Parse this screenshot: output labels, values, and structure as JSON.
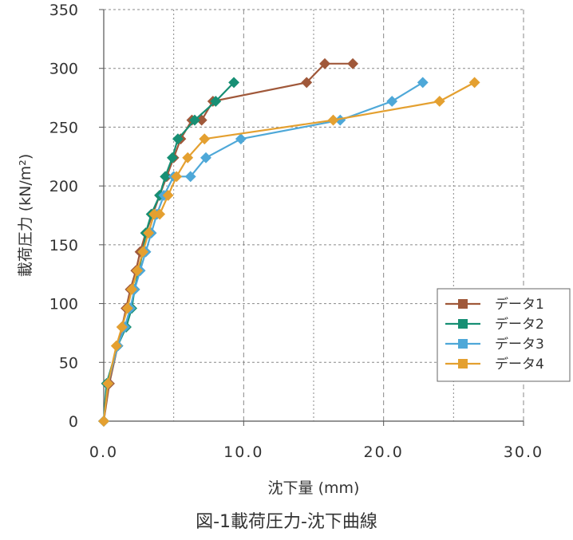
{
  "chart_data": {
    "type": "line",
    "ylabel": "載荷圧力 (kN/m²)",
    "xlabel": "沈下量 (mm)",
    "caption": "図-1載荷圧力-沈下曲線",
    "xlim": [
      0,
      30
    ],
    "ylim": [
      0,
      350
    ],
    "x_ticks": [
      0,
      10,
      20,
      30
    ],
    "x_tick_labels": [
      "0.0",
      "10.0",
      "20.0",
      "30.0"
    ],
    "y_ticks": [
      0,
      50,
      100,
      150,
      200,
      250,
      300,
      350
    ],
    "y_tick_labels": [
      "0",
      "50",
      "100",
      "150",
      "200",
      "250",
      "300",
      "350"
    ],
    "grid": true,
    "legend_position": "bottom-right",
    "series": [
      {
        "name": "データ1",
        "color": "#A0583A",
        "marker": "diamond",
        "x": [
          0.0,
          0.4,
          1.0,
          1.3,
          1.6,
          1.9,
          2.3,
          2.6,
          3.0,
          3.5,
          4.0,
          4.5,
          5.0,
          5.5,
          6.3,
          7.0,
          7.8,
          14.5,
          15.8,
          17.8
        ],
        "y": [
          0,
          32,
          64,
          80,
          96,
          112,
          128,
          144,
          160,
          176,
          192,
          208,
          224,
          240,
          256,
          256,
          272,
          288,
          304,
          304
        ]
      },
      {
        "name": "データ2",
        "color": "#178F74",
        "marker": "diamond",
        "x": [
          0.0,
          0.2,
          1.0,
          1.6,
          2.0,
          2.2,
          2.5,
          2.8,
          3.0,
          3.4,
          4.0,
          4.4,
          4.9,
          5.3,
          6.5,
          8.0,
          9.3
        ],
        "y": [
          0,
          32,
          64,
          80,
          96,
          112,
          128,
          144,
          160,
          176,
          192,
          208,
          224,
          240,
          256,
          272,
          288
        ]
      },
      {
        "name": "データ3",
        "color": "#4EA8D8",
        "marker": "diamond",
        "x": [
          0.0,
          0.3,
          1.0,
          1.5,
          1.9,
          2.2,
          2.6,
          3.0,
          3.4,
          3.8,
          4.3,
          5.0,
          6.2,
          7.3,
          9.8,
          16.9,
          20.6,
          22.8
        ],
        "y": [
          0,
          32,
          64,
          80,
          96,
          112,
          128,
          144,
          160,
          176,
          192,
          208,
          208,
          224,
          240,
          256,
          272,
          288
        ]
      },
      {
        "name": "データ4",
        "color": "#E4A030",
        "marker": "diamond",
        "x": [
          0.0,
          0.3,
          0.9,
          1.3,
          1.7,
          2.0,
          2.4,
          2.8,
          3.2,
          3.6,
          4.0,
          4.6,
          5.2,
          6.0,
          7.2,
          16.4,
          24.0,
          26.5
        ],
        "y": [
          0,
          32,
          64,
          80,
          96,
          112,
          128,
          144,
          160,
          176,
          176,
          192,
          208,
          224,
          240,
          256,
          272,
          288
        ]
      }
    ]
  }
}
